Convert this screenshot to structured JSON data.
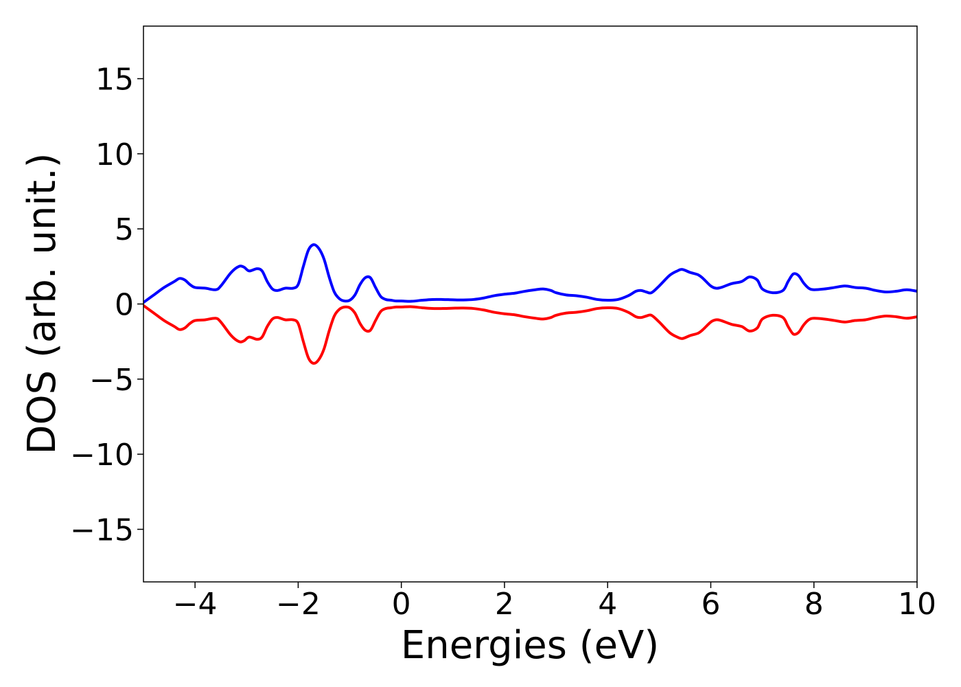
{
  "chart_data": {
    "type": "line",
    "title": "",
    "xlabel": "Energies (eV)",
    "ylabel": "DOS (arb. unit.)",
    "xlim": [
      -5,
      10
    ],
    "ylim": [
      -18.5,
      18.5
    ],
    "xticks": [
      -4,
      -2,
      0,
      2,
      4,
      6,
      8,
      10
    ],
    "xtick_labels": [
      "−4",
      "−2",
      "0",
      "2",
      "4",
      "6",
      "8",
      "10"
    ],
    "yticks": [
      15,
      10,
      5,
      0,
      -5,
      -10,
      -15
    ],
    "ytick_labels": [
      "15",
      "10",
      "5",
      "0",
      "−5",
      "−10",
      "−15"
    ],
    "grid": false,
    "legend": "none",
    "series": [
      {
        "color": "#0000ff",
        "x": [
          -5.0,
          -4.8,
          -4.6,
          -4.4,
          -4.3,
          -4.2,
          -4.1,
          -4.0,
          -3.8,
          -3.6,
          -3.5,
          -3.3,
          -3.15,
          -3.05,
          -2.95,
          -2.8,
          -2.7,
          -2.6,
          -2.5,
          -2.4,
          -2.25,
          -2.1,
          -2.0,
          -1.9,
          -1.8,
          -1.7,
          -1.6,
          -1.5,
          -1.4,
          -1.3,
          -1.2,
          -1.1,
          -1.0,
          -0.9,
          -0.8,
          -0.7,
          -0.6,
          -0.5,
          -0.4,
          -0.3,
          -0.2,
          -0.1,
          0.0,
          0.2,
          0.4,
          0.6,
          0.8,
          1.0,
          1.2,
          1.4,
          1.6,
          1.8,
          2.0,
          2.2,
          2.4,
          2.6,
          2.75,
          2.9,
          3.0,
          3.2,
          3.4,
          3.6,
          3.8,
          4.0,
          4.2,
          4.4,
          4.55,
          4.65,
          4.75,
          4.85,
          5.0,
          5.2,
          5.35,
          5.45,
          5.6,
          5.75,
          5.85,
          6.0,
          6.1,
          6.2,
          6.4,
          6.6,
          6.75,
          6.9,
          7.0,
          7.2,
          7.4,
          7.5,
          7.6,
          7.7,
          7.8,
          7.9,
          8.0,
          8.2,
          8.4,
          8.6,
          8.8,
          9.0,
          9.2,
          9.4,
          9.6,
          9.8,
          10.0
        ],
        "y": [
          0.1,
          0.6,
          1.1,
          1.5,
          1.7,
          1.6,
          1.3,
          1.1,
          1.05,
          0.95,
          1.2,
          2.1,
          2.5,
          2.45,
          2.2,
          2.35,
          2.2,
          1.5,
          1.0,
          0.9,
          1.05,
          1.05,
          1.3,
          2.5,
          3.6,
          3.95,
          3.7,
          3.0,
          1.8,
          0.8,
          0.35,
          0.2,
          0.25,
          0.6,
          1.3,
          1.75,
          1.75,
          1.1,
          0.5,
          0.3,
          0.25,
          0.2,
          0.2,
          0.18,
          0.25,
          0.3,
          0.3,
          0.28,
          0.27,
          0.3,
          0.4,
          0.55,
          0.65,
          0.72,
          0.85,
          0.95,
          1.0,
          0.9,
          0.75,
          0.6,
          0.55,
          0.45,
          0.3,
          0.25,
          0.3,
          0.55,
          0.85,
          0.9,
          0.8,
          0.75,
          1.2,
          1.9,
          2.2,
          2.3,
          2.1,
          1.95,
          1.7,
          1.2,
          1.05,
          1.1,
          1.35,
          1.5,
          1.8,
          1.6,
          1.0,
          0.75,
          0.9,
          1.5,
          2.0,
          1.9,
          1.4,
          1.05,
          0.95,
          1.0,
          1.1,
          1.2,
          1.1,
          1.05,
          0.9,
          0.8,
          0.85,
          0.95,
          0.85
        ]
      },
      {
        "color": "#ff0000",
        "x": [
          -5.0,
          -4.8,
          -4.6,
          -4.4,
          -4.3,
          -4.2,
          -4.1,
          -4.0,
          -3.8,
          -3.6,
          -3.5,
          -3.3,
          -3.15,
          -3.05,
          -2.95,
          -2.8,
          -2.7,
          -2.6,
          -2.5,
          -2.4,
          -2.25,
          -2.1,
          -2.0,
          -1.9,
          -1.8,
          -1.7,
          -1.6,
          -1.5,
          -1.4,
          -1.3,
          -1.2,
          -1.1,
          -1.0,
          -0.9,
          -0.8,
          -0.7,
          -0.6,
          -0.5,
          -0.4,
          -0.3,
          -0.2,
          -0.1,
          0.0,
          0.2,
          0.4,
          0.6,
          0.8,
          1.0,
          1.2,
          1.4,
          1.6,
          1.8,
          2.0,
          2.2,
          2.4,
          2.6,
          2.75,
          2.9,
          3.0,
          3.2,
          3.4,
          3.6,
          3.8,
          4.0,
          4.2,
          4.4,
          4.55,
          4.65,
          4.75,
          4.85,
          5.0,
          5.2,
          5.35,
          5.45,
          5.6,
          5.75,
          5.85,
          6.0,
          6.1,
          6.2,
          6.4,
          6.6,
          6.75,
          6.9,
          7.0,
          7.2,
          7.4,
          7.5,
          7.6,
          7.7,
          7.8,
          7.9,
          8.0,
          8.2,
          8.4,
          8.6,
          8.8,
          9.0,
          9.2,
          9.4,
          9.6,
          9.8,
          10.0
        ],
        "y": [
          -0.1,
          -0.6,
          -1.1,
          -1.5,
          -1.7,
          -1.6,
          -1.3,
          -1.1,
          -1.05,
          -0.95,
          -1.2,
          -2.1,
          -2.5,
          -2.45,
          -2.2,
          -2.35,
          -2.2,
          -1.5,
          -1.0,
          -0.9,
          -1.05,
          -1.05,
          -1.3,
          -2.5,
          -3.6,
          -3.95,
          -3.7,
          -3.0,
          -1.8,
          -0.8,
          -0.35,
          -0.2,
          -0.25,
          -0.6,
          -1.3,
          -1.75,
          -1.75,
          -1.1,
          -0.5,
          -0.3,
          -0.25,
          -0.2,
          -0.2,
          -0.18,
          -0.25,
          -0.3,
          -0.3,
          -0.28,
          -0.27,
          -0.3,
          -0.4,
          -0.55,
          -0.65,
          -0.72,
          -0.85,
          -0.95,
          -1.0,
          -0.9,
          -0.75,
          -0.6,
          -0.55,
          -0.45,
          -0.3,
          -0.25,
          -0.3,
          -0.55,
          -0.85,
          -0.9,
          -0.8,
          -0.75,
          -1.2,
          -1.9,
          -2.2,
          -2.3,
          -2.1,
          -1.95,
          -1.7,
          -1.2,
          -1.05,
          -1.1,
          -1.35,
          -1.5,
          -1.8,
          -1.6,
          -1.0,
          -0.75,
          -0.9,
          -1.5,
          -2.0,
          -1.9,
          -1.4,
          -1.05,
          -0.95,
          -1.0,
          -1.1,
          -1.2,
          -1.1,
          -1.05,
          -0.9,
          -0.8,
          -0.85,
          -0.95,
          -0.85
        ]
      }
    ]
  }
}
